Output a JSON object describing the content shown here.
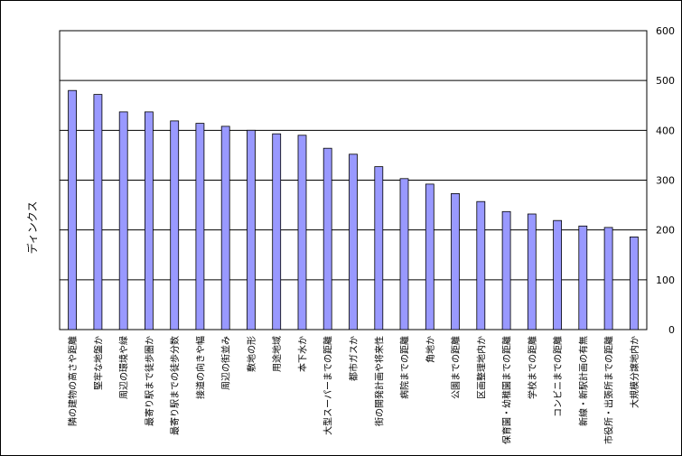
{
  "chart_data": {
    "type": "bar",
    "title": "",
    "xlabel": "",
    "ylabel": "ディンクス",
    "ylim": [
      0,
      600
    ],
    "yticks": [
      0,
      100,
      200,
      300,
      400,
      500,
      600
    ],
    "y_axis_side": "right",
    "grid": true,
    "bar_color": "#9999ff",
    "categories": [
      "隣の建物の高さや距離",
      "堅牢な地盤か",
      "周辺の環境や緑",
      "最寄り駅まで徒歩圏か",
      "最寄り駅までの徒歩分数",
      "接道の向きや幅",
      "周辺の街並み",
      "敷地の形",
      "用途地域",
      "本下水か",
      "大型スーパーまでの距離",
      "都市ガスか",
      "街の開発計画や将来性",
      "病院までの距離",
      "角地か",
      "公園までの距離",
      "区画整理地内か",
      "保育園・幼稚園までの距離",
      "学校までの距離",
      "コンビニまでの距離",
      "新線・新駅計画の有無",
      "市役所・出張所までの距離",
      "大規模分譲地内か"
    ],
    "values": [
      480,
      472,
      437,
      437,
      419,
      414,
      408,
      400,
      393,
      390,
      364,
      352,
      327,
      303,
      292,
      273,
      257,
      237,
      232,
      219,
      208,
      205,
      186
    ]
  }
}
